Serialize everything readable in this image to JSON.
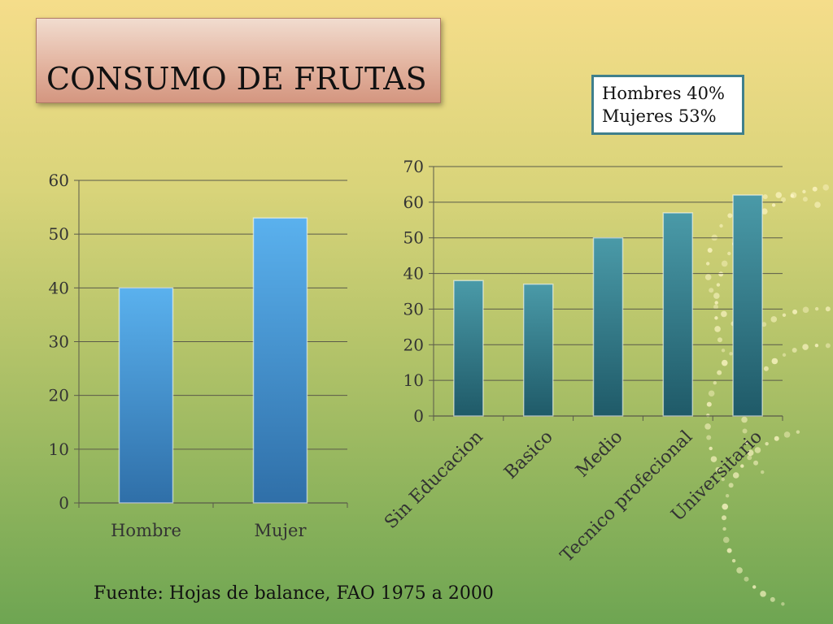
{
  "slide": {
    "title": "CONSUMO DE FRUTAS",
    "source": "Fuente: Hojas de balance, FAO 1975 a 2000",
    "legend_lines": [
      "Hombres 40%",
      "Mujeres 53%"
    ]
  },
  "colors": {
    "left_bar": "#4a9fdc",
    "right_bar": "#2f7f8e",
    "axis": "#5a5a4a",
    "text": "#333333"
  },
  "chart_data": [
    {
      "type": "bar",
      "categories": [
        "Hombre",
        "Mujer"
      ],
      "values": [
        40,
        53
      ],
      "ylim": [
        0,
        60
      ],
      "yticks": [
        0,
        10,
        20,
        30,
        40,
        50,
        60
      ],
      "grid": true
    },
    {
      "type": "bar",
      "categories": [
        "Sin Educacion",
        "Basico",
        "Medio",
        "Tecnico profecional",
        "Universitario"
      ],
      "values": [
        38,
        37,
        50,
        57,
        62
      ],
      "ylim": [
        0,
        70
      ],
      "yticks": [
        0,
        10,
        20,
        30,
        40,
        50,
        60,
        70
      ],
      "grid": true
    }
  ]
}
